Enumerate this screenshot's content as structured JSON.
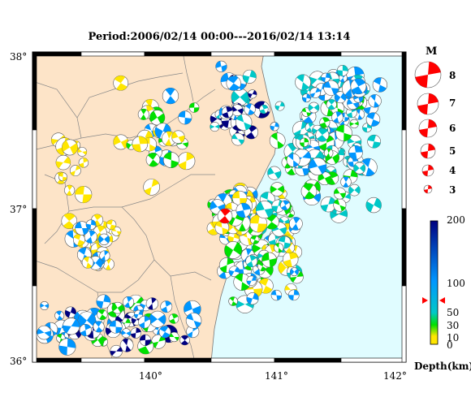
{
  "title": "Period:2006/02/14 00:00---2016/02/14 13:14",
  "axes": {
    "lat_ticks": [
      "38°",
      "37°",
      "36°"
    ],
    "lon_ticks": [
      "140°",
      "141°",
      "142°"
    ]
  },
  "magnitude_legend": {
    "title": "M",
    "entries": [
      "8",
      "7",
      "6",
      "5",
      "4",
      "3"
    ]
  },
  "depth_colorbar": {
    "label": "Depth(km)",
    "ticks": [
      "200",
      "100",
      "50",
      "30",
      "10",
      "0"
    ],
    "colors": {
      "shallow": "#ffe600",
      "mid_shallow": "#00e000",
      "mid": "#00c8c8",
      "deep_mid": "#0096ff",
      "deep": "#000080"
    }
  },
  "colors": {
    "land": "#fde4c8",
    "sea": "#e0fcff",
    "event_highlight": "#ff0000"
  }
}
